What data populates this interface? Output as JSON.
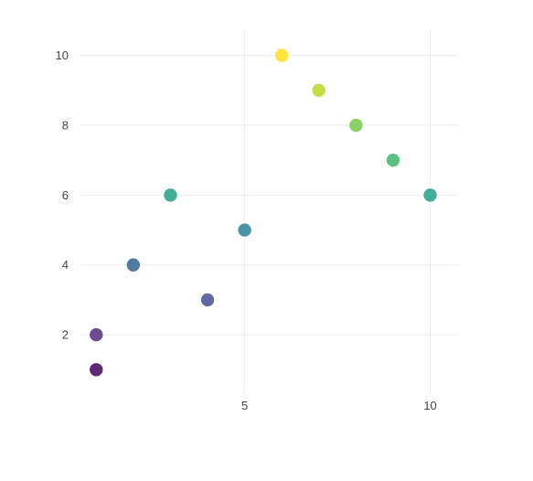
{
  "chart_data": {
    "type": "scatter",
    "title": "",
    "xlabel": "",
    "ylabel": "",
    "xlim": [
      0.55,
      10.75
    ],
    "ylim": [
      0.3,
      10.75
    ],
    "xticks": [
      5,
      10
    ],
    "yticks": [
      2,
      4,
      6,
      8,
      10
    ],
    "grid": true,
    "legend": "none",
    "colorscale": "viridis",
    "series": [
      {
        "points": [
          {
            "x": 1,
            "y": 1,
            "color": "#5c2a74"
          },
          {
            "x": 1,
            "y": 2,
            "color": "#6b4c93"
          },
          {
            "x": 2,
            "y": 4,
            "color": "#52799e"
          },
          {
            "x": 3,
            "y": 6,
            "color": "#44ae99"
          },
          {
            "x": 4,
            "y": 3,
            "color": "#5f6ca1"
          },
          {
            "x": 5,
            "y": 5,
            "color": "#4995a3"
          },
          {
            "x": 6,
            "y": 10,
            "color": "#fde53c"
          },
          {
            "x": 7,
            "y": 9,
            "color": "#c4dc46"
          },
          {
            "x": 8,
            "y": 8,
            "color": "#87d262"
          },
          {
            "x": 9,
            "y": 7,
            "color": "#5bc283"
          },
          {
            "x": 10,
            "y": 6,
            "color": "#44ae99"
          }
        ]
      }
    ]
  }
}
